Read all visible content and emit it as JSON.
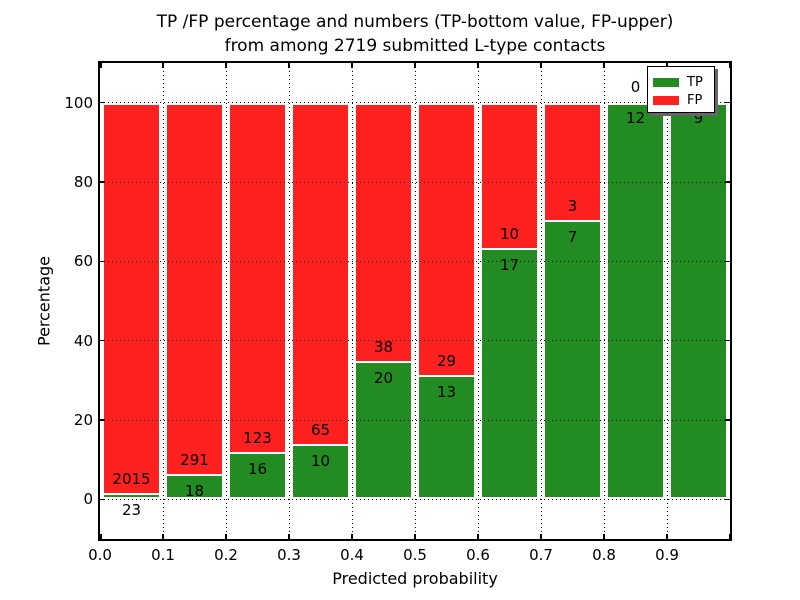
{
  "figure": {
    "title_line1": "TP /FP percentage and numbers (TP-bottom value, FP-upper)",
    "title_line2": "from among 2719 submitted L-type contacts"
  },
  "axes": {
    "xlabel": "Predicted probability",
    "ylabel": "Percentage",
    "ytick_labels": [
      "0",
      "20",
      "40",
      "60",
      "80",
      "100"
    ],
    "ytick_values": [
      0,
      20,
      40,
      60,
      80,
      100
    ],
    "xtick_labels": [
      "0.0",
      "0.1",
      "0.2",
      "0.3",
      "0.4",
      "0.5",
      "0.6",
      "0.7",
      "0.8",
      "0.9"
    ],
    "xtick_values": [
      0.0,
      0.1,
      0.2,
      0.3,
      0.4,
      0.5,
      0.6,
      0.7,
      0.8,
      0.9
    ]
  },
  "legend": {
    "items": [
      {
        "label": "TP",
        "color": "#228b22"
      },
      {
        "label": "FP",
        "color": "#ff2020"
      }
    ],
    "position": "upper right"
  },
  "chart_data": {
    "type": "bar",
    "stacked": true,
    "normalized": "each bin scaled to 100%",
    "title": "TP /FP percentage and numbers (TP-bottom value, FP-upper) from among 2719 submitted L-type contacts",
    "xlabel": "Predicted probability",
    "ylabel": "Percentage",
    "total_contacts": 2719,
    "bin_edges": [
      0.0,
      0.1,
      0.2,
      0.3,
      0.4,
      0.5,
      0.6,
      0.7,
      0.8,
      0.9,
      1.0
    ],
    "categories": [
      "0.0-0.1",
      "0.1-0.2",
      "0.2-0.3",
      "0.3-0.4",
      "0.4-0.5",
      "0.5-0.6",
      "0.6-0.7",
      "0.7-0.8",
      "0.8-0.9",
      "0.9-1.0"
    ],
    "series": [
      {
        "name": "TP",
        "color": "#228b22",
        "counts": [
          23,
          18,
          16,
          10,
          20,
          13,
          17,
          7,
          12,
          9
        ]
      },
      {
        "name": "FP",
        "color": "#ff2020",
        "counts": [
          2015,
          291,
          123,
          65,
          38,
          29,
          10,
          3,
          0,
          0
        ]
      }
    ],
    "tp_percent": [
      1.13,
      5.83,
      11.51,
      13.33,
      34.48,
      30.95,
      62.96,
      70.0,
      100.0,
      100.0
    ],
    "ylim": [
      -10,
      110
    ],
    "xlim": [
      0.0,
      1.0
    ],
    "grid": true,
    "grid_style": "dotted, drawn above bars",
    "legend_position": "upper right"
  }
}
